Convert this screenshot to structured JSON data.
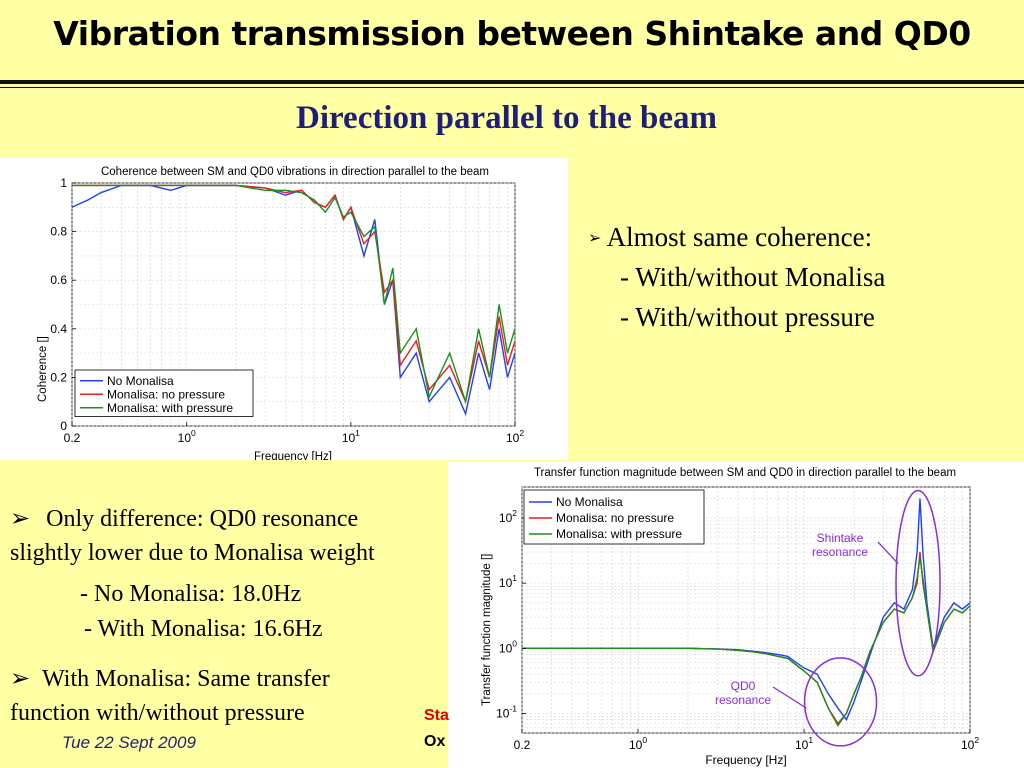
{
  "slide": {
    "title": "Vibration transmission between Shintake and QD0",
    "subtitle": "Direction parallel to the beam",
    "bullet_glyph": "➢",
    "right_bullets": {
      "main": "Almost same coherence:",
      "sub1": "- With/without Monalisa",
      "sub2": "- With/without pressure"
    },
    "left_bullets": {
      "b1_line1": "Only difference: QD0 resonance",
      "b1_line2": "slightly lower due to Monalisa weight",
      "sub1": "- No Monalisa: 18.0Hz",
      "sub2": "- With Monalisa: 16.6Hz",
      "b2_line1": "With Monalisa: Same transfer",
      "b2_line2": "function with/without pressure"
    },
    "footer": {
      "date": "Tue 22 Sept 2009",
      "red_partial": "Sta",
      "black_partial": "Ox"
    }
  },
  "chart_data": [
    {
      "type": "line",
      "title": "Coherence between SM and QD0 vibrations in direction parallel to the beam",
      "xlabel": "Frequency [Hz]",
      "ylabel": "Coherence []",
      "xscale": "log",
      "xlim": [
        0.2,
        100
      ],
      "ylim": [
        0,
        1
      ],
      "x_ticks": [
        "0.2",
        "10^0",
        "10^1",
        "10^2"
      ],
      "y_ticks": [
        "0",
        "0.2",
        "0.4",
        "0.6",
        "0.8",
        "1"
      ],
      "grid": true,
      "legend_position": "bottom-left",
      "series": [
        {
          "name": "No Monalisa",
          "color": "#1f3fff",
          "points": [
            [
              0.2,
              0.9
            ],
            [
              0.25,
              0.93
            ],
            [
              0.3,
              0.96
            ],
            [
              0.4,
              0.99
            ],
            [
              0.6,
              0.99
            ],
            [
              0.8,
              0.97
            ],
            [
              1,
              0.99
            ],
            [
              2,
              0.99
            ],
            [
              3,
              0.98
            ],
            [
              4,
              0.95
            ],
            [
              5,
              0.97
            ],
            [
              6,
              0.92
            ],
            [
              7,
              0.9
            ],
            [
              8,
              0.95
            ],
            [
              9,
              0.85
            ],
            [
              10,
              0.9
            ],
            [
              12,
              0.7
            ],
            [
              14,
              0.85
            ],
            [
              16,
              0.5
            ],
            [
              18,
              0.6
            ],
            [
              20,
              0.2
            ],
            [
              25,
              0.3
            ],
            [
              30,
              0.1
            ],
            [
              40,
              0.2
            ],
            [
              50,
              0.05
            ],
            [
              60,
              0.3
            ],
            [
              70,
              0.15
            ],
            [
              80,
              0.4
            ],
            [
              90,
              0.2
            ],
            [
              100,
              0.3
            ]
          ]
        },
        {
          "name": "Monalisa: no pressure",
          "color": "#ee1c1c",
          "points": [
            [
              0.2,
              0.99
            ],
            [
              0.5,
              0.99
            ],
            [
              1,
              0.99
            ],
            [
              2,
              0.99
            ],
            [
              3,
              0.98
            ],
            [
              4,
              0.96
            ],
            [
              5,
              0.97
            ],
            [
              6,
              0.92
            ],
            [
              7,
              0.9
            ],
            [
              8,
              0.95
            ],
            [
              9,
              0.85
            ],
            [
              10,
              0.9
            ],
            [
              12,
              0.75
            ],
            [
              14,
              0.8
            ],
            [
              16,
              0.55
            ],
            [
              18,
              0.6
            ],
            [
              20,
              0.25
            ],
            [
              25,
              0.35
            ],
            [
              30,
              0.15
            ],
            [
              40,
              0.25
            ],
            [
              50,
              0.1
            ],
            [
              60,
              0.35
            ],
            [
              70,
              0.2
            ],
            [
              80,
              0.45
            ],
            [
              90,
              0.25
            ],
            [
              100,
              0.35
            ]
          ]
        },
        {
          "name": "Monalisa: with pressure",
          "color": "#1a8f1a",
          "points": [
            [
              0.2,
              0.99
            ],
            [
              0.5,
              0.99
            ],
            [
              1,
              0.99
            ],
            [
              2,
              0.99
            ],
            [
              3,
              0.97
            ],
            [
              4,
              0.97
            ],
            [
              5,
              0.96
            ],
            [
              6,
              0.93
            ],
            [
              7,
              0.88
            ],
            [
              8,
              0.94
            ],
            [
              9,
              0.86
            ],
            [
              10,
              0.88
            ],
            [
              12,
              0.78
            ],
            [
              14,
              0.82
            ],
            [
              16,
              0.5
            ],
            [
              18,
              0.65
            ],
            [
              20,
              0.3
            ],
            [
              25,
              0.4
            ],
            [
              30,
              0.12
            ],
            [
              40,
              0.3
            ],
            [
              50,
              0.1
            ],
            [
              60,
              0.4
            ],
            [
              70,
              0.2
            ],
            [
              80,
              0.5
            ],
            [
              90,
              0.3
            ],
            [
              100,
              0.4
            ]
          ]
        }
      ]
    },
    {
      "type": "line",
      "title": "Transfer function magnitude between SM and QD0 in direction parallel to the beam",
      "xlabel": "Frequency [Hz]",
      "ylabel": "Transfer function magnitude []",
      "xscale": "log",
      "yscale": "log",
      "xlim": [
        0.2,
        100
      ],
      "ylim": [
        0.05,
        300
      ],
      "x_ticks": [
        "0.2",
        "10^0",
        "10^1",
        "10^2"
      ],
      "y_ticks": [
        "10^-1",
        "10^0",
        "10^1",
        "10^2"
      ],
      "grid": true,
      "legend_position": "top-left",
      "annotations": [
        {
          "text_lines": [
            "Shintake",
            "resonance"
          ],
          "color": "#8a2be2"
        },
        {
          "text_lines": [
            "QD0",
            "resonance"
          ],
          "color": "#8a2be2"
        }
      ],
      "series": [
        {
          "name": "No Monalisa",
          "color": "#1f3fff",
          "points": [
            [
              0.2,
              1
            ],
            [
              0.5,
              1
            ],
            [
              1,
              1
            ],
            [
              2,
              1
            ],
            [
              3,
              0.98
            ],
            [
              4,
              0.95
            ],
            [
              5,
              0.9
            ],
            [
              6,
              0.85
            ],
            [
              7,
              0.8
            ],
            [
              8,
              0.75
            ],
            [
              9,
              0.6
            ],
            [
              10,
              0.5
            ],
            [
              12,
              0.4
            ],
            [
              14,
              0.2
            ],
            [
              16,
              0.12
            ],
            [
              18,
              0.08
            ],
            [
              20,
              0.15
            ],
            [
              22,
              0.3
            ],
            [
              25,
              0.8
            ],
            [
              30,
              3
            ],
            [
              35,
              5
            ],
            [
              40,
              4
            ],
            [
              45,
              8
            ],
            [
              48,
              30
            ],
            [
              50,
              200
            ],
            [
              52,
              30
            ],
            [
              55,
              5
            ],
            [
              60,
              1
            ],
            [
              70,
              3
            ],
            [
              80,
              5
            ],
            [
              90,
              4
            ],
            [
              100,
              5
            ]
          ]
        },
        {
          "name": "Monalisa: no pressure",
          "color": "#ee1c1c",
          "points": [
            [
              0.2,
              1
            ],
            [
              0.5,
              1
            ],
            [
              1,
              1
            ],
            [
              2,
              1
            ],
            [
              3,
              0.97
            ],
            [
              4,
              0.93
            ],
            [
              5,
              0.88
            ],
            [
              6,
              0.82
            ],
            [
              7,
              0.75
            ],
            [
              8,
              0.7
            ],
            [
              9,
              0.55
            ],
            [
              10,
              0.45
            ],
            [
              12,
              0.3
            ],
            [
              14,
              0.12
            ],
            [
              16,
              0.07
            ],
            [
              18,
              0.1
            ],
            [
              20,
              0.2
            ],
            [
              22,
              0.35
            ],
            [
              25,
              0.9
            ],
            [
              30,
              2.5
            ],
            [
              35,
              4
            ],
            [
              40,
              3.5
            ],
            [
              45,
              6
            ],
            [
              48,
              10
            ],
            [
              50,
              30
            ],
            [
              52,
              10
            ],
            [
              55,
              4
            ],
            [
              60,
              0.9
            ],
            [
              70,
              2.5
            ],
            [
              80,
              4
            ],
            [
              90,
              3.5
            ],
            [
              100,
              4.5
            ]
          ]
        },
        {
          "name": "Monalisa: with pressure",
          "color": "#1a8f1a",
          "points": [
            [
              0.2,
              1
            ],
            [
              0.5,
              1
            ],
            [
              1,
              1
            ],
            [
              2,
              1
            ],
            [
              3,
              0.97
            ],
            [
              4,
              0.93
            ],
            [
              5,
              0.88
            ],
            [
              6,
              0.82
            ],
            [
              7,
              0.75
            ],
            [
              8,
              0.7
            ],
            [
              9,
              0.55
            ],
            [
              10,
              0.45
            ],
            [
              12,
              0.3
            ],
            [
              14,
              0.12
            ],
            [
              16,
              0.065
            ],
            [
              18,
              0.1
            ],
            [
              20,
              0.2
            ],
            [
              22,
              0.35
            ],
            [
              25,
              0.9
            ],
            [
              30,
              2.5
            ],
            [
              35,
              4
            ],
            [
              40,
              3.5
            ],
            [
              45,
              6
            ],
            [
              48,
              12
            ],
            [
              50,
              25
            ],
            [
              52,
              12
            ],
            [
              55,
              4
            ],
            [
              60,
              0.9
            ],
            [
              70,
              2.5
            ],
            [
              80,
              4
            ],
            [
              90,
              3.5
            ],
            [
              100,
              4.5
            ]
          ]
        }
      ]
    }
  ]
}
